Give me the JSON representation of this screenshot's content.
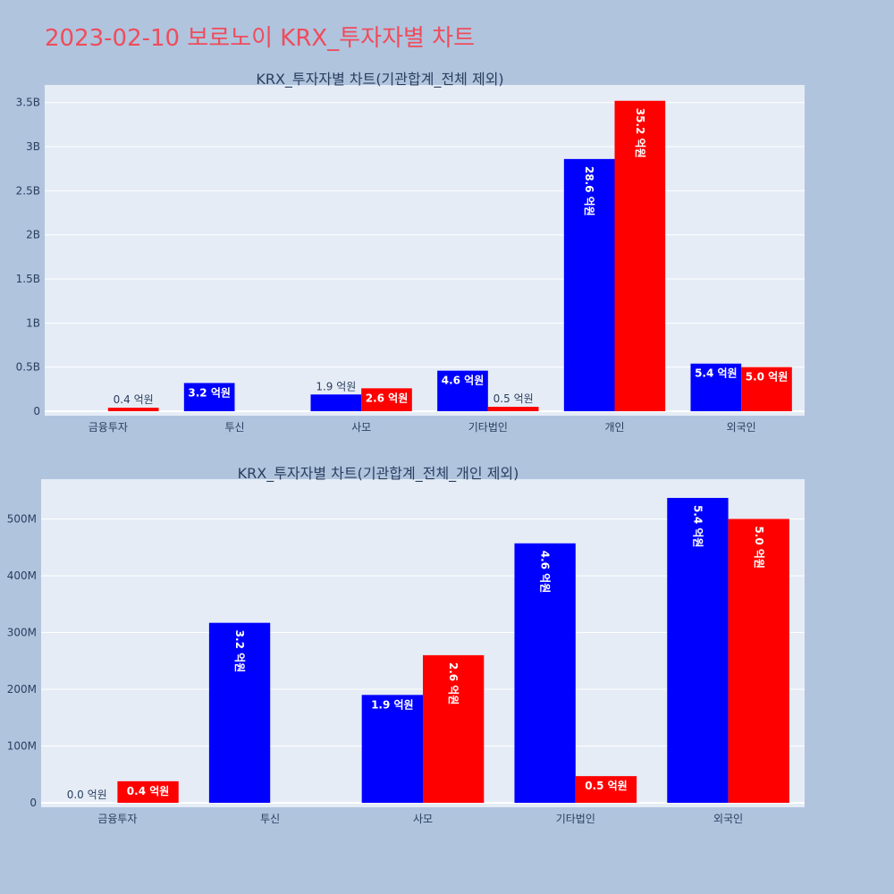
{
  "page": {
    "title": "2023-02-10 보로노이 KRX_투자자별 차트"
  },
  "colors": {
    "series_a": "#0000ff",
    "series_b": "#ff0000",
    "title": "#ef4c5c"
  },
  "chart_data": [
    {
      "type": "bar",
      "title": "KRX_투자자별 차트(기관합계_전체 제외)",
      "categories": [
        "금융투자",
        "투신",
        "사모",
        "기타법인",
        "개인",
        "외국인"
      ],
      "series": [
        {
          "values": [
            0,
            320000000,
            190000000,
            460000000,
            2860000000,
            540000000
          ],
          "labels": [
            "",
            "3.2 억원",
            "1.9 억원",
            "4.6 억원",
            "28.6 억원",
            "5.4 억원"
          ]
        },
        {
          "values": [
            40000000,
            0,
            260000000,
            50000000,
            3520000000,
            500000000
          ],
          "labels": [
            "0.4 억원",
            "",
            "2.6 억원",
            "0.5 억원",
            "35.2 억원",
            "5.0 억원"
          ]
        }
      ],
      "yticks": [
        0,
        500000000,
        1000000000,
        1500000000,
        2000000000,
        2500000000,
        3000000000,
        3500000000
      ],
      "ytick_labels": [
        "0",
        "0.5B",
        "1B",
        "1.5B",
        "2B",
        "2.5B",
        "3B",
        "3.5B"
      ],
      "ylim": [
        0,
        3700000000
      ],
      "grid": true
    },
    {
      "type": "bar",
      "title": "KRX_투자자별 차트(기관합계_전체_개인 제외)",
      "categories": [
        "금융투자",
        "투신",
        "사모",
        "기타법인",
        "외국인"
      ],
      "series": [
        {
          "values": [
            0,
            317000000,
            190000000,
            457000000,
            537000000
          ],
          "labels": [
            "0.0 억원",
            "3.2 억원",
            "1.9 억원",
            "4.6 억원",
            "5.4 억원"
          ]
        },
        {
          "values": [
            38000000,
            0,
            260000000,
            47000000,
            500000000
          ],
          "labels": [
            "0.4 억원",
            "",
            "2.6 억원",
            "0.5 억원",
            "5.0 억원"
          ]
        }
      ],
      "yticks": [
        0,
        100000000,
        200000000,
        300000000,
        400000000,
        500000000
      ],
      "ytick_labels": [
        "0",
        "100M",
        "200M",
        "300M",
        "400M",
        "500M"
      ],
      "ylim": [
        0,
        570000000
      ],
      "grid": true
    }
  ]
}
